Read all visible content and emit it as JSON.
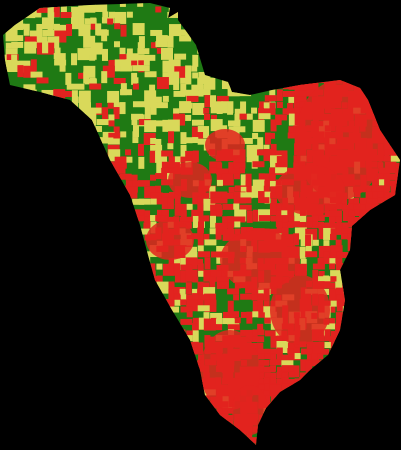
{
  "map": {
    "type": "raster-classification",
    "background_color": "#000000",
    "classes": [
      {
        "key": "green",
        "color": "#1f7a14"
      },
      {
        "key": "yellow",
        "color": "#d9d95a"
      },
      {
        "key": "red",
        "color": "#e2231f"
      }
    ]
  }
}
